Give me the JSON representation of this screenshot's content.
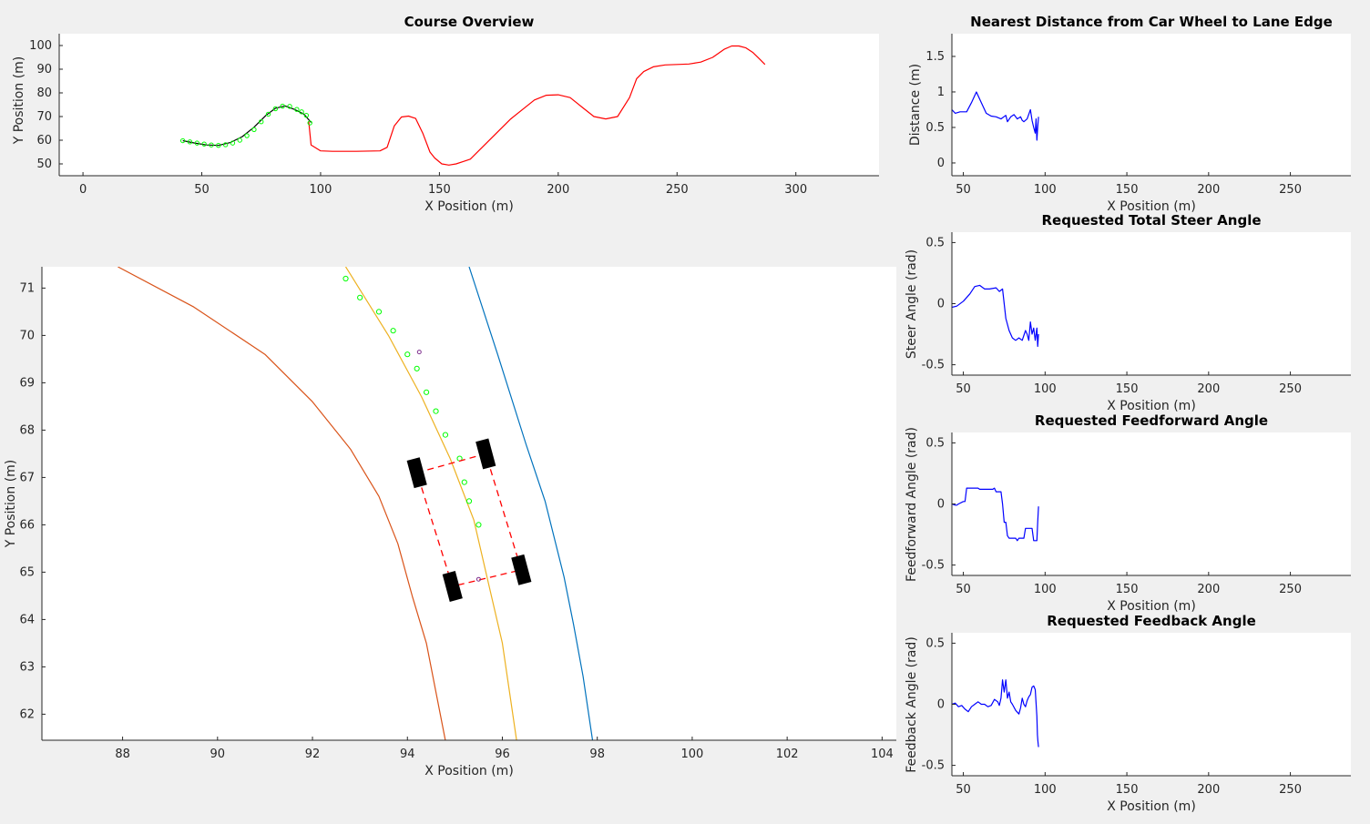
{
  "chart_data": [
    {
      "id": "course",
      "type": "line",
      "title": "Course Overview",
      "xlabel": "X Position (m)",
      "ylabel": "Y Position (m)",
      "xlim": [
        -10,
        335
      ],
      "ylim": [
        45,
        105
      ],
      "xticks": [
        "0",
        "50",
        "100",
        "150",
        "200",
        "250",
        "300"
      ],
      "yticks": [
        "50",
        "60",
        "70",
        "80",
        "90",
        "100"
      ],
      "grid": false,
      "series": [
        {
          "color": "#ff0000",
          "x": [
            95,
            96,
            100,
            105,
            115,
            125,
            128,
            131,
            134,
            137,
            140,
            143,
            146,
            148,
            151,
            154,
            157,
            160,
            163,
            170,
            180,
            190,
            195,
            200,
            205,
            210,
            215,
            220,
            225,
            230,
            233,
            236,
            240,
            245,
            250,
            255,
            260,
            265,
            270,
            273,
            276,
            279,
            282,
            285,
            287
          ],
          "y": [
            68,
            58,
            55.5,
            55.3,
            55.3,
            55.5,
            57,
            66,
            69.8,
            70.2,
            69.2,
            63,
            55,
            52.5,
            50,
            49.5,
            50,
            51,
            52,
            59,
            69,
            77,
            79,
            79.2,
            78,
            74,
            70,
            69,
            70,
            78,
            86,
            89,
            91,
            91.8,
            92,
            92.2,
            93,
            95,
            98.5,
            99.8,
            99.8,
            99,
            97,
            94,
            92
          ]
        },
        {
          "color": "#000000",
          "x": [
            42,
            47,
            52,
            57,
            62,
            67,
            72,
            77,
            81,
            85,
            89,
            93,
            96
          ],
          "y": [
            59.8,
            58.8,
            58,
            57.8,
            59,
            61.5,
            65.5,
            70.5,
            73.5,
            74.5,
            73,
            71,
            67.5
          ]
        }
      ],
      "markers": {
        "color": "#00ff00",
        "x": [
          42,
          45,
          48,
          51,
          54,
          57,
          60,
          63,
          66,
          69,
          72,
          75,
          78,
          81,
          84,
          87,
          90,
          92,
          94,
          95.5
        ],
        "y": [
          59.8,
          59.3,
          58.8,
          58.4,
          58,
          57.8,
          58.1,
          58.8,
          60,
          61.9,
          64.5,
          67.8,
          71,
          73.3,
          74.4,
          74.3,
          73,
          72,
          70.5,
          67.3
        ]
      }
    },
    {
      "id": "zoom",
      "type": "line",
      "title": "",
      "xlabel": "X Position (m)",
      "ylabel": "Y Position (m)",
      "xlim": [
        86.3,
        104.3
      ],
      "ylim": [
        61.45,
        71.45
      ],
      "xticks": [
        "88",
        "90",
        "92",
        "94",
        "96",
        "98",
        "100",
        "102",
        "104"
      ],
      "yticks": [
        "62",
        "63",
        "64",
        "65",
        "66",
        "67",
        "68",
        "69",
        "70",
        "71"
      ],
      "grid": false,
      "series": [
        {
          "color": "#d95319",
          "x": [
            87.9,
            89.5,
            91.0,
            92.0,
            92.8,
            93.4,
            93.8,
            94.1,
            94.4,
            94.8
          ],
          "y": [
            71.45,
            70.6,
            69.6,
            68.6,
            67.6,
            66.6,
            65.6,
            64.5,
            63.5,
            61.45
          ]
        },
        {
          "color": "#edb120",
          "x": [
            92.7,
            93.6,
            94.3,
            94.9,
            95.4,
            95.7,
            96.0,
            96.3
          ],
          "y": [
            71.45,
            70.0,
            68.7,
            67.4,
            66.1,
            64.8,
            63.5,
            61.45
          ]
        },
        {
          "color": "#0072bd",
          "x": [
            95.3,
            95.9,
            96.5,
            96.9,
            97.3,
            97.5,
            97.7,
            97.9
          ],
          "y": [
            71.45,
            69.6,
            67.7,
            66.5,
            64.9,
            63.9,
            62.8,
            61.45
          ]
        }
      ],
      "markers": {
        "color": "#00ff00",
        "x": [
          92.7,
          93.0,
          93.4,
          93.7,
          94.0,
          94.2,
          94.4,
          94.6,
          94.8,
          95.1,
          95.2,
          95.3,
          95.5
        ],
        "y": [
          71.2,
          70.8,
          70.5,
          70.1,
          69.6,
          69.3,
          68.8,
          68.4,
          67.9,
          67.4,
          66.9,
          66.5,
          66.0
        ]
      },
      "vehicle": {
        "outline_color": "#ff0000",
        "wheel_color": "#000000",
        "corners": {
          "front_left": [
            94.2,
            67.1
          ],
          "front_right": [
            95.65,
            67.5
          ],
          "rear_right": [
            96.4,
            65.05
          ],
          "rear_left": [
            94.95,
            64.7
          ]
        },
        "wheel_angle_deg": -15,
        "wheel_length_m": 0.6,
        "wheel_width_m": 0.28,
        "marks": [
          [
            94.25,
            69.65
          ],
          [
            95.5,
            64.85
          ]
        ]
      }
    },
    {
      "id": "distance",
      "type": "line",
      "title": "Nearest Distance from Car Wheel to Lane Edge",
      "xlabel": "X Position (m)",
      "ylabel": "Distance (m)",
      "xlim": [
        43,
        287
      ],
      "ylim": [
        -0.18,
        1.82
      ],
      "xticks": [
        "50",
        "100",
        "150",
        "200",
        "250"
      ],
      "yticks": [
        "0",
        "0.5",
        "1",
        "1.5"
      ],
      "grid": false,
      "series": [
        {
          "color": "#0000ff",
          "x": [
            43,
            45,
            48,
            52,
            55,
            58,
            61,
            64,
            67,
            70,
            73,
            76,
            77,
            79,
            81,
            83,
            85,
            86,
            87,
            89,
            91,
            92,
            93,
            94,
            94.5,
            95,
            95.5,
            96
          ],
          "y": [
            0.75,
            0.7,
            0.72,
            0.72,
            0.85,
            1.0,
            0.85,
            0.7,
            0.66,
            0.65,
            0.62,
            0.67,
            0.58,
            0.65,
            0.68,
            0.62,
            0.65,
            0.6,
            0.58,
            0.62,
            0.75,
            0.6,
            0.5,
            0.42,
            0.62,
            0.32,
            0.5,
            0.65
          ]
        }
      ]
    },
    {
      "id": "steer",
      "type": "line",
      "title": "Requested Total Steer Angle",
      "xlabel": "X Position (m)",
      "ylabel": "Steer Angle (rad)",
      "xlim": [
        43,
        287
      ],
      "ylim": [
        -0.585,
        0.585
      ],
      "xticks": [
        "50",
        "100",
        "150",
        "200",
        "250"
      ],
      "yticks": [
        "-0.5",
        "0",
        "0.5"
      ],
      "grid": false,
      "series": [
        {
          "color": "#0000ff",
          "x": [
            43,
            46,
            50,
            54,
            57,
            60,
            63,
            66,
            70,
            72,
            74,
            75,
            76,
            78,
            80,
            82,
            84,
            86,
            88,
            89,
            90,
            91,
            92,
            93,
            94,
            95,
            95.5,
            96
          ],
          "y": [
            -0.03,
            -0.02,
            0.02,
            0.08,
            0.14,
            0.15,
            0.12,
            0.12,
            0.13,
            0.1,
            0.12,
            0.0,
            -0.12,
            -0.22,
            -0.28,
            -0.3,
            -0.28,
            -0.3,
            -0.22,
            -0.25,
            -0.3,
            -0.15,
            -0.25,
            -0.2,
            -0.3,
            -0.2,
            -0.35,
            -0.25
          ]
        }
      ]
    },
    {
      "id": "feedforward",
      "type": "line",
      "title": "Requested Feedforward Angle",
      "xlabel": "X Position (m)",
      "ylabel": "Feedforward Angle (rad)",
      "xlim": [
        43,
        287
      ],
      "ylim": [
        -0.585,
        0.585
      ],
      "xticks": [
        "50",
        "100",
        "150",
        "200",
        "250"
      ],
      "yticks": [
        "-0.5",
        "0",
        "0.5"
      ],
      "grid": false,
      "series": [
        {
          "color": "#0000ff",
          "x": [
            43,
            45,
            46,
            47,
            50,
            51,
            52,
            59,
            60,
            61,
            68,
            69,
            70,
            73,
            74,
            75,
            76,
            77,
            78,
            82,
            83,
            84,
            87,
            88,
            89,
            92,
            93,
            95,
            95.5,
            96
          ],
          "y": [
            0,
            -0.01,
            -0.01,
            0.0,
            0.02,
            0.02,
            0.13,
            0.13,
            0.12,
            0.12,
            0.12,
            0.13,
            0.1,
            0.1,
            0.0,
            -0.15,
            -0.15,
            -0.26,
            -0.28,
            -0.28,
            -0.3,
            -0.28,
            -0.28,
            -0.2,
            -0.2,
            -0.2,
            -0.3,
            -0.3,
            -0.15,
            -0.02
          ]
        }
      ]
    },
    {
      "id": "feedback",
      "type": "line",
      "title": "Requested Feedback Angle",
      "xlabel": "X Position (m)",
      "ylabel": "Feedback Angle (rad)",
      "xlim": [
        43,
        287
      ],
      "ylim": [
        -0.585,
        0.585
      ],
      "xticks": [
        "50",
        "100",
        "150",
        "200",
        "250"
      ],
      "yticks": [
        "-0.5",
        "0",
        "0.5"
      ],
      "grid": false,
      "series": [
        {
          "color": "#0000ff",
          "x": [
            43,
            45,
            47,
            49,
            51,
            53,
            55,
            57,
            59,
            61,
            63,
            65,
            67,
            69,
            71,
            72,
            73,
            74,
            75,
            76,
            77,
            78,
            79,
            80,
            82,
            84,
            85,
            86,
            87,
            88,
            89,
            90,
            91,
            92,
            93,
            94,
            95,
            95.3,
            95.6,
            96
          ],
          "y": [
            0,
            0.01,
            -0.02,
            -0.01,
            -0.04,
            -0.06,
            -0.02,
            0.0,
            0.02,
            0.0,
            0.0,
            -0.02,
            -0.01,
            0.04,
            0.02,
            -0.01,
            0.05,
            0.2,
            0.1,
            0.2,
            0.05,
            0.1,
            0.02,
            0.0,
            -0.05,
            -0.08,
            -0.03,
            0.05,
            0.0,
            -0.02,
            0.03,
            0.06,
            0.08,
            0.14,
            0.15,
            0.12,
            -0.1,
            -0.25,
            -0.3,
            -0.35
          ]
        }
      ]
    }
  ]
}
